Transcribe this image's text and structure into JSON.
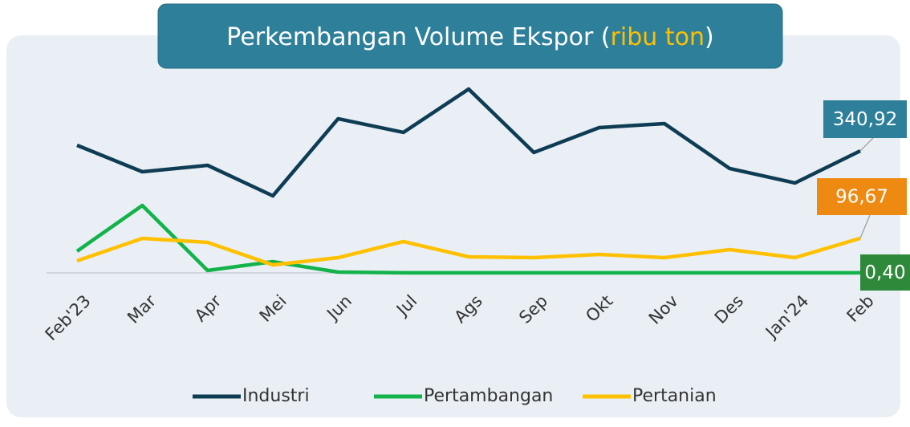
{
  "chart_data": {
    "type": "line",
    "title": [
      "Perkembangan Volume Ekspor (",
      "ribu ton",
      ")"
    ],
    "categories": [
      "Feb'23",
      "Mar",
      "Apr",
      "Mei",
      "Jun",
      "Jul",
      "Ags",
      "Sep",
      "Okt",
      "Nov",
      "Des",
      "Jan'24",
      "Feb"
    ],
    "series": [
      {
        "name": "Industri",
        "color": "#0e3c55",
        "values": [
          356.6,
          282.6,
          300.6,
          215.3,
          430.7,
          392.5,
          513.6,
          336.5,
          406,
          417.2,
          291.6,
          251.2,
          340.92
        ],
        "value_labels": [
          null,
          null,
          null,
          null,
          null,
          null,
          null,
          null,
          null,
          null,
          null,
          null,
          "340,92"
        ]
      },
      {
        "name": "Pertambangan",
        "color": "#13b24b",
        "values": [
          60.6,
          188.4,
          6.7,
          31.4,
          2.2,
          0.4,
          0.4,
          0.4,
          0.4,
          0.4,
          0.4,
          0.4,
          0.4
        ],
        "value_labels": [
          null,
          null,
          null,
          null,
          null,
          null,
          null,
          null,
          null,
          null,
          null,
          null,
          "0,40"
        ]
      },
      {
        "name": "Pertanian",
        "color": "#ffc000",
        "values": [
          33.6,
          96.4,
          85.2,
          22.4,
          42.6,
          87.5,
          44.9,
          42.6,
          51.6,
          42.6,
          65,
          42.6,
          96.67
        ],
        "value_labels": [
          null,
          null,
          null,
          null,
          null,
          null,
          null,
          null,
          null,
          null,
          null,
          null,
          "96,67"
        ]
      }
    ]
  }
}
